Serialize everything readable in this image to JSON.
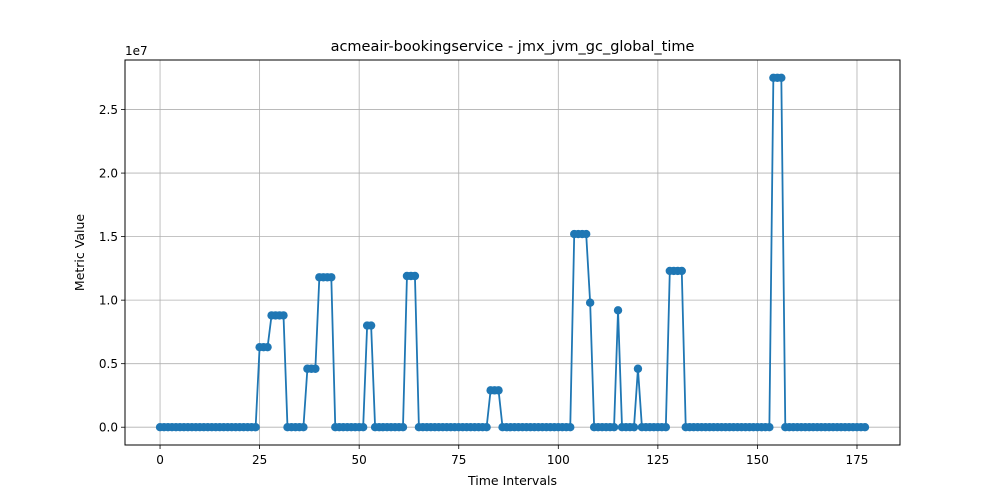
{
  "chart_data": {
    "type": "line",
    "title": "acmeair-bookingservice - jmx_jvm_gc_global_time",
    "xlabel": "Time Intervals",
    "ylabel": "Metric Value",
    "y_offset_label": "1e7",
    "xlim": [
      -8.8,
      185.8
    ],
    "ylim": [
      -1400000,
      28900000
    ],
    "x_ticks": [
      0,
      25,
      50,
      75,
      100,
      125,
      150,
      175
    ],
    "x_tick_labels": [
      "0",
      "25",
      "50",
      "75",
      "100",
      "125",
      "150",
      "175"
    ],
    "y_ticks": [
      0,
      5000000,
      10000000,
      15000000,
      20000000,
      25000000
    ],
    "y_tick_labels": [
      "0.0",
      "0.5",
      "1.0",
      "1.5",
      "2.0",
      "2.5"
    ],
    "grid": true,
    "line_color": "#1f77b4",
    "series": [
      {
        "values": [
          0,
          0,
          0,
          0,
          0,
          0,
          0,
          0,
          0,
          0,
          0,
          0,
          0,
          0,
          0,
          0,
          0,
          0,
          0,
          0,
          0,
          0,
          0,
          0,
          0,
          6300000,
          6300000,
          6300000,
          8800000,
          8800000,
          8800000,
          8800000,
          0,
          0,
          0,
          0,
          0,
          4600000,
          4600000,
          4600000,
          11800000,
          11800000,
          11800000,
          11800000,
          0,
          0,
          0,
          0,
          0,
          0,
          0,
          0,
          8000000,
          8000000,
          0,
          0,
          0,
          0,
          0,
          0,
          0,
          0,
          11900000,
          11900000,
          11900000,
          0,
          0,
          0,
          0,
          0,
          0,
          0,
          0,
          0,
          0,
          0,
          0,
          0,
          0,
          0,
          0,
          0,
          0,
          2900000,
          2900000,
          2900000,
          0,
          0,
          0,
          0,
          0,
          0,
          0,
          0,
          0,
          0,
          0,
          0,
          0,
          0,
          0,
          0,
          0,
          0,
          15200000,
          15200000,
          15200000,
          15200000,
          9800000,
          0,
          0,
          0,
          0,
          0,
          0,
          9200000,
          0,
          0,
          0,
          0,
          4600000,
          0,
          0,
          0,
          0,
          0,
          0,
          0,
          12300000,
          12300000,
          12300000,
          12300000,
          0,
          0,
          0,
          0,
          0,
          0,
          0,
          0,
          0,
          0,
          0,
          0,
          0,
          0,
          0,
          0,
          0,
          0,
          0,
          0,
          0,
          0,
          27500000,
          27500000,
          27500000,
          0,
          0,
          0,
          0,
          0,
          0,
          0,
          0,
          0,
          0,
          0,
          0,
          0,
          0,
          0,
          0,
          0,
          0,
          0,
          0,
          0
        ]
      }
    ]
  }
}
